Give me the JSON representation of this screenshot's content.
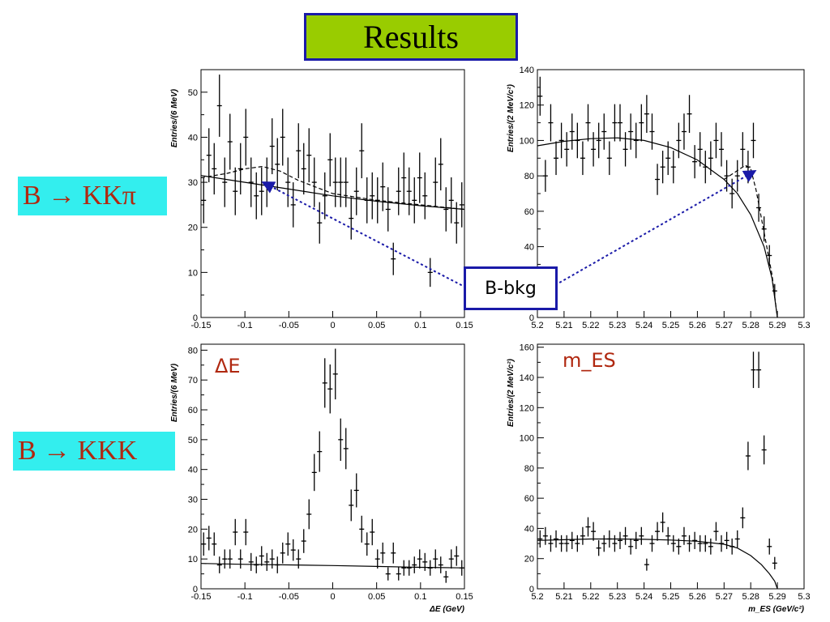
{
  "title": "Results",
  "decay_labels": [
    "B → KKπ",
    "B → KKK"
  ],
  "callout": "B-bkg",
  "colors": {
    "title_bg": "#99cc00",
    "title_border": "#1a1aa8",
    "decay_bg": "#33eeee",
    "decay_text": "#b02810",
    "arrow": "#1a1aa8",
    "annotation": "#b02810"
  },
  "chart_data": [
    {
      "type": "scatter",
      "name": "kkpi_deltaE",
      "xlim": [
        -0.15,
        0.15
      ],
      "ylim": [
        0,
        55
      ],
      "xticks": [
        -0.15,
        -0.1,
        -0.05,
        0,
        0.05,
        0.1,
        0.15
      ],
      "yticks": [
        0,
        10,
        20,
        30,
        40,
        50
      ],
      "xlabel": "",
      "ylabel": "Entries/(6 MeV)",
      "annotation": "",
      "x": [
        -0.147,
        -0.141,
        -0.135,
        -0.129,
        -0.123,
        -0.117,
        -0.111,
        -0.105,
        -0.099,
        -0.093,
        -0.087,
        -0.081,
        -0.075,
        -0.069,
        -0.063,
        -0.057,
        -0.051,
        -0.045,
        -0.039,
        -0.033,
        -0.027,
        -0.021,
        -0.015,
        -0.009,
        -0.003,
        0.003,
        0.009,
        0.015,
        0.021,
        0.027,
        0.033,
        0.039,
        0.045,
        0.051,
        0.057,
        0.063,
        0.069,
        0.075,
        0.081,
        0.087,
        0.093,
        0.099,
        0.105,
        0.111,
        0.117,
        0.123,
        0.129,
        0.135,
        0.141,
        0.147
      ],
      "y": [
        26,
        36,
        33,
        47,
        30,
        39,
        28,
        33,
        40,
        30,
        27,
        28,
        30,
        38,
        34,
        40,
        30,
        25,
        37,
        33,
        36,
        30,
        21,
        27,
        35,
        30,
        30,
        30,
        22,
        28,
        37,
        26,
        27,
        26,
        29,
        24,
        13,
        28,
        31,
        28,
        26,
        31,
        27,
        10,
        30,
        34,
        24,
        26,
        21,
        25
      ],
      "errors": [
        5.1,
        6,
        5.7,
        6.9,
        5.5,
        6.2,
        5.3,
        5.7,
        6.3,
        5.5,
        5.2,
        5.3,
        5.5,
        6.2,
        5.8,
        6.3,
        5.5,
        5,
        6.1,
        5.7,
        6,
        5.5,
        4.6,
        5.2,
        5.9,
        5.5,
        5.5,
        5.5,
        4.7,
        5.3,
        6.1,
        5.1,
        5.2,
        5.1,
        5.4,
        4.9,
        3.6,
        5.3,
        5.6,
        5.3,
        5.1,
        5.6,
        5.2,
        3.2,
        5.5,
        5.8,
        4.9,
        5.1,
        4.6,
        5
      ],
      "fit_solid": {
        "x": [
          -0.15,
          -0.1,
          -0.05,
          0,
          0.05,
          0.1,
          0.15
        ],
        "y": [
          31.5,
          30,
          28.5,
          27,
          25.8,
          24.8,
          24
        ]
      },
      "fit_dashed": {
        "x": [
          -0.15,
          -0.12,
          -0.1,
          -0.08,
          -0.06,
          -0.04,
          -0.02,
          0,
          0.05,
          0.1,
          0.15
        ],
        "y": [
          31,
          32,
          33,
          33.5,
          32.5,
          30.5,
          29,
          27.5,
          26,
          25,
          24
        ]
      }
    },
    {
      "type": "scatter",
      "name": "kkpi_mES",
      "xlim": [
        5.2,
        5.3
      ],
      "ylim": [
        0,
        140
      ],
      "xticks": [
        5.2,
        5.21,
        5.22,
        5.23,
        5.24,
        5.25,
        5.26,
        5.27,
        5.28,
        5.29,
        5.3
      ],
      "yticks": [
        0,
        20,
        40,
        60,
        80,
        100,
        120,
        140
      ],
      "xlabel": "",
      "ylabel": "Entries/(2 MeV/c²)",
      "annotation": "",
      "x": [
        5.201,
        5.203,
        5.205,
        5.207,
        5.209,
        5.211,
        5.213,
        5.215,
        5.217,
        5.219,
        5.221,
        5.223,
        5.225,
        5.227,
        5.229,
        5.231,
        5.233,
        5.235,
        5.237,
        5.239,
        5.241,
        5.243,
        5.245,
        5.247,
        5.249,
        5.251,
        5.253,
        5.255,
        5.257,
        5.259,
        5.261,
        5.263,
        5.265,
        5.267,
        5.269,
        5.271,
        5.273,
        5.275,
        5.277,
        5.279,
        5.281,
        5.283,
        5.285,
        5.287,
        5.289
      ],
      "y": [
        125,
        80,
        110,
        90,
        100,
        95,
        105,
        100,
        90,
        110,
        95,
        100,
        105,
        90,
        110,
        110,
        95,
        105,
        100,
        110,
        115,
        105,
        78,
        85,
        90,
        85,
        100,
        105,
        115,
        88,
        95,
        85,
        90,
        100,
        95,
        80,
        70,
        80,
        95,
        85,
        100,
        62,
        50,
        35,
        15
      ],
      "errors": [
        11,
        9,
        10.5,
        9.5,
        10,
        9.7,
        10.2,
        10,
        9.5,
        10.5,
        9.7,
        10,
        10.2,
        9.5,
        10.5,
        10.5,
        9.7,
        10.2,
        10,
        10.5,
        10.7,
        10.2,
        8.8,
        9.2,
        9.5,
        9.2,
        10,
        10.2,
        10.7,
        9.4,
        9.7,
        9.2,
        9.5,
        10,
        9.7,
        8.9,
        8.4,
        8.9,
        9.7,
        9.2,
        10,
        7.9,
        7.1,
        5.9,
        3.9
      ],
      "fit_solid": {
        "x": [
          5.2,
          5.21,
          5.22,
          5.23,
          5.24,
          5.25,
          5.26,
          5.27,
          5.275,
          5.28,
          5.285,
          5.288,
          5.29
        ],
        "y": [
          97,
          99.5,
          101,
          101.5,
          100,
          96,
          89,
          78,
          70,
          58,
          40,
          22,
          0
        ]
      },
      "fit_dashed": {
        "x": [
          5.27,
          5.274,
          5.278,
          5.28,
          5.282,
          5.285,
          5.288,
          5.29
        ],
        "y": [
          78,
          82,
          86,
          84,
          72,
          48,
          24,
          0
        ]
      }
    },
    {
      "type": "scatter",
      "name": "kkk_deltaE",
      "xlim": [
        -0.15,
        0.15
      ],
      "ylim": [
        0,
        82
      ],
      "xticks": [
        -0.15,
        -0.1,
        -0.05,
        0,
        0.05,
        0.1,
        0.15
      ],
      "yticks": [
        0,
        10,
        20,
        30,
        40,
        50,
        60,
        70,
        80
      ],
      "xlabel": "ΔE (GeV)",
      "ylabel": "Entries/(6 MeV)",
      "annotation": "ΔE",
      "x": [
        -0.147,
        -0.141,
        -0.135,
        -0.129,
        -0.123,
        -0.117,
        -0.111,
        -0.105,
        -0.099,
        -0.093,
        -0.087,
        -0.081,
        -0.075,
        -0.069,
        -0.063,
        -0.057,
        -0.051,
        -0.045,
        -0.039,
        -0.033,
        -0.027,
        -0.021,
        -0.015,
        -0.009,
        -0.003,
        0.003,
        0.009,
        0.015,
        0.021,
        0.027,
        0.033,
        0.039,
        0.045,
        0.051,
        0.057,
        0.063,
        0.069,
        0.075,
        0.081,
        0.087,
        0.093,
        0.099,
        0.105,
        0.111,
        0.117,
        0.123,
        0.129,
        0.135,
        0.141,
        0.147
      ],
      "y": [
        15,
        17,
        15,
        8,
        10,
        10,
        19,
        10,
        19,
        9,
        8,
        11,
        9,
        10,
        8,
        12,
        15,
        13,
        10,
        16,
        25,
        39,
        46,
        69,
        67,
        72,
        50,
        47,
        28,
        33,
        20,
        15,
        19,
        10,
        12,
        5,
        12,
        5,
        7,
        7,
        8,
        10,
        9,
        7,
        10,
        8,
        4,
        10,
        11,
        7
      ],
      "errors": [
        3.9,
        4.1,
        3.9,
        2.8,
        3.2,
        3.2,
        4.4,
        3.2,
        4.4,
        3,
        2.8,
        3.3,
        3,
        3.2,
        2.8,
        3.5,
        3.9,
        3.6,
        3.2,
        4,
        5,
        6.2,
        6.8,
        8.3,
        8.2,
        8.5,
        7.1,
        6.9,
        5.3,
        5.7,
        4.5,
        3.9,
        4.4,
        3.2,
        3.5,
        2.2,
        3.5,
        2.2,
        2.6,
        2.6,
        2.8,
        3.2,
        3,
        2.6,
        3.2,
        2.8,
        2,
        3.2,
        3.3,
        2.6
      ],
      "fit_solid": {
        "x": [
          -0.15,
          -0.1,
          -0.05,
          0,
          0.05,
          0.1,
          0.15
        ],
        "y": [
          8.5,
          8.2,
          8,
          7.8,
          7.5,
          7.2,
          7
        ]
      },
      "fit_dashed": {
        "x": [],
        "y": []
      }
    },
    {
      "type": "scatter",
      "name": "kkk_mES",
      "xlim": [
        5.2,
        5.3
      ],
      "ylim": [
        0,
        162
      ],
      "xticks": [
        5.2,
        5.21,
        5.22,
        5.23,
        5.24,
        5.25,
        5.26,
        5.27,
        5.28,
        5.29,
        5.3
      ],
      "yticks": [
        0,
        20,
        40,
        60,
        80,
        100,
        120,
        140,
        160
      ],
      "xlabel": "m_ES (GeV/c²)",
      "ylabel": "Entries/(2 MeV/c²)",
      "annotation": "m_ES",
      "x": [
        5.201,
        5.203,
        5.205,
        5.207,
        5.209,
        5.211,
        5.213,
        5.215,
        5.217,
        5.219,
        5.221,
        5.223,
        5.225,
        5.227,
        5.229,
        5.231,
        5.233,
        5.235,
        5.237,
        5.239,
        5.241,
        5.243,
        5.245,
        5.247,
        5.249,
        5.251,
        5.253,
        5.255,
        5.257,
        5.259,
        5.261,
        5.263,
        5.265,
        5.267,
        5.269,
        5.271,
        5.273,
        5.275,
        5.277,
        5.279,
        5.281,
        5.283,
        5.285,
        5.287,
        5.289
      ],
      "y": [
        33,
        35,
        30,
        33,
        30,
        30,
        32,
        30,
        35,
        41,
        38,
        27,
        30,
        33,
        30,
        32,
        35,
        28,
        32,
        35,
        16,
        30,
        38,
        44,
        35,
        30,
        28,
        35,
        30,
        32,
        30,
        30,
        28,
        38,
        30,
        32,
        28,
        33,
        47,
        88,
        145,
        145,
        92,
        28,
        17
      ],
      "errors": [
        5.7,
        5.9,
        5.5,
        5.7,
        5.5,
        5.5,
        5.7,
        5.5,
        5.9,
        6.4,
        6.2,
        5.2,
        5.5,
        5.7,
        5.5,
        5.7,
        5.9,
        5.3,
        5.7,
        5.9,
        4,
        5.5,
        6.2,
        6.6,
        5.9,
        5.5,
        5.3,
        5.9,
        5.5,
        5.7,
        5.5,
        5.5,
        5.3,
        6.2,
        5.5,
        5.7,
        5.3,
        5.7,
        6.9,
        9.4,
        12,
        12,
        9.6,
        5.3,
        4.1
      ],
      "fit_solid": {
        "x": [
          5.2,
          5.21,
          5.22,
          5.23,
          5.24,
          5.25,
          5.26,
          5.27,
          5.275,
          5.28,
          5.284,
          5.287,
          5.289,
          5.29
        ],
        "y": [
          32,
          32.5,
          33,
          33,
          32.8,
          32.3,
          31.5,
          29.5,
          27,
          22,
          16,
          10,
          5,
          0
        ]
      },
      "fit_dashed": {
        "x": [],
        "y": []
      }
    }
  ]
}
